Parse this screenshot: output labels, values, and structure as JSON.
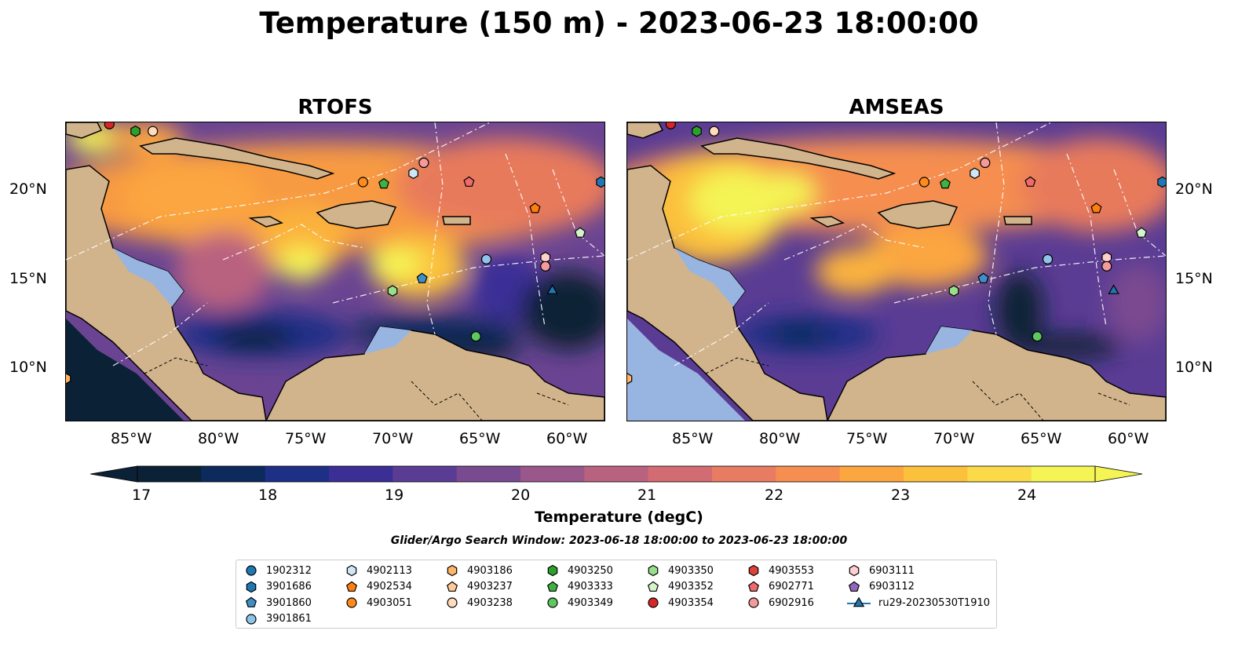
{
  "title": "Temperature (150 m) - 2023-06-23 18:00:00",
  "panels": [
    {
      "title": "RTOFS"
    },
    {
      "title": "AMSEAS"
    }
  ],
  "axes": {
    "lat_labels": [
      "20°N",
      "15°N",
      "10°N"
    ],
    "lon_labels": [
      "85°W",
      "80°W",
      "75°W",
      "70°W",
      "65°W",
      "60°W"
    ],
    "lat_range": [
      7,
      24
    ],
    "lon_range": [
      -89,
      -58
    ]
  },
  "colorbar": {
    "label": "Temperature (degC)",
    "ticks": [
      "17",
      "18",
      "19",
      "20",
      "21",
      "22",
      "23",
      "24"
    ],
    "range": [
      16.75,
      24.5
    ],
    "colors": [
      "#0b2236",
      "#0d2a5c",
      "#1e2f86",
      "#3b2f96",
      "#5a3c94",
      "#7a4a90",
      "#9a588a",
      "#b9627f",
      "#d36c72",
      "#e77c62",
      "#f58e50",
      "#fba63f",
      "#fbc03c",
      "#fada48",
      "#f4f454"
    ]
  },
  "search_window": "Glider/Argo Search Window: 2023-06-18 18:00:00 to 2023-06-23 18:00:00",
  "land_color": "#d2b48c",
  "shelf_color": "#98b4e0",
  "legend": [
    {
      "id": "1902312",
      "marker": "circle",
      "color": "#1f77b4"
    },
    {
      "id": "3901686",
      "marker": "hexagon",
      "color": "#1f77b4"
    },
    {
      "id": "3901860",
      "marker": "pentagon",
      "color": "#3d8fc9"
    },
    {
      "id": "3901861",
      "marker": "circle",
      "color": "#8fc3ea"
    },
    {
      "id": "4902113",
      "marker": "hexagon",
      "color": "#cfe6f7"
    },
    {
      "id": "4902534",
      "marker": "pentagon",
      "color": "#ff7f0e"
    },
    {
      "id": "4903051",
      "marker": "circle",
      "color": "#ff8c1a"
    },
    {
      "id": "4903186",
      "marker": "hexagon",
      "color": "#ffb566"
    },
    {
      "id": "4903237",
      "marker": "pentagon",
      "color": "#ffc99a"
    },
    {
      "id": "4903238",
      "marker": "circle",
      "color": "#ffdcbb"
    },
    {
      "id": "4903250",
      "marker": "hexagon",
      "color": "#2ca02c"
    },
    {
      "id": "4903333",
      "marker": "pentagon",
      "color": "#3fb23f"
    },
    {
      "id": "4903349",
      "marker": "circle",
      "color": "#5ec85e"
    },
    {
      "id": "4903350",
      "marker": "hexagon",
      "color": "#98df8a"
    },
    {
      "id": "4903352",
      "marker": "pentagon",
      "color": "#d4f5cc"
    },
    {
      "id": "4903354",
      "marker": "circle",
      "color": "#d62728"
    },
    {
      "id": "4903553",
      "marker": "hexagon",
      "color": "#e0403a"
    },
    {
      "id": "6902771",
      "marker": "pentagon",
      "color": "#ef6a6a"
    },
    {
      "id": "6902916",
      "marker": "circle",
      "color": "#f59a9a"
    },
    {
      "id": "6903111",
      "marker": "hexagon",
      "color": "#ffcece"
    },
    {
      "id": "6903112",
      "marker": "pentagon",
      "color": "#9467bd"
    },
    {
      "id": "ru29-20230530T1910",
      "marker": "triangle",
      "color": "#1f77b4"
    }
  ],
  "floats_on_map": [
    {
      "id": "4903354",
      "lon": -86.5,
      "lat": 23.9
    },
    {
      "id": "4903250",
      "lon": -85.0,
      "lat": 23.5
    },
    {
      "id": "4903238",
      "lon": -84.0,
      "lat": 23.5
    },
    {
      "id": "4903051",
      "lon": -71.9,
      "lat": 20.6
    },
    {
      "id": "4903333",
      "lon": -70.7,
      "lat": 20.5
    },
    {
      "id": "4902113",
      "lon": -69.0,
      "lat": 21.1
    },
    {
      "id": "6902916",
      "lon": -68.4,
      "lat": 21.7
    },
    {
      "id": "6902771",
      "lon": -65.8,
      "lat": 20.6
    },
    {
      "id": "4902534",
      "lon": -62.0,
      "lat": 19.1
    },
    {
      "id": "4903352",
      "lon": -59.4,
      "lat": 17.7
    },
    {
      "id": "3901686",
      "lon": -58.2,
      "lat": 20.6
    },
    {
      "id": "3901861",
      "lon": -64.8,
      "lat": 16.2
    },
    {
      "id": "6903111",
      "lon": -61.4,
      "lat": 16.3
    },
    {
      "id": "6902916",
      "lon": -61.4,
      "lat": 15.8
    },
    {
      "id": "3901860",
      "lon": -68.5,
      "lat": 15.1
    },
    {
      "id": "4903350",
      "lon": -70.2,
      "lat": 14.4
    },
    {
      "id": "ru29-20230530T1910",
      "lon": -61.0,
      "lat": 14.4
    },
    {
      "id": "4903349",
      "lon": -65.4,
      "lat": 11.8
    },
    {
      "id": "4903186",
      "lon": -89.0,
      "lat": 9.4
    }
  ]
}
